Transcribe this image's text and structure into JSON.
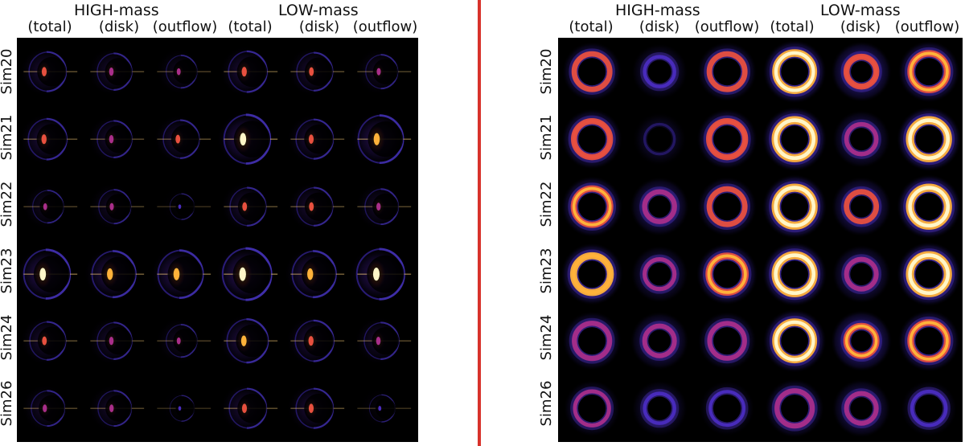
{
  "divider_color": "#d8322b",
  "panels": [
    {
      "view": "edge-on",
      "groups": [
        "HIGH-mass",
        "LOW-mass"
      ],
      "columns": [
        "(total)",
        "(disk)",
        "(outflow)",
        "(total)",
        "(disk)",
        "(outflow)"
      ],
      "rows": [
        "Sim20",
        "Sim21",
        "Sim22",
        "Sim23",
        "Sim24",
        "Sim26"
      ],
      "intensity": [
        [
          0.55,
          0.45,
          0.3,
          0.6,
          0.5,
          0.35
        ],
        [
          0.6,
          0.45,
          0.5,
          0.9,
          0.55,
          0.85
        ],
        [
          0.3,
          0.35,
          0.05,
          0.5,
          0.5,
          0.4
        ],
        [
          0.9,
          0.8,
          0.85,
          1.0,
          0.8,
          0.95
        ],
        [
          0.5,
          0.45,
          0.3,
          0.7,
          0.6,
          0.45
        ],
        [
          0.4,
          0.4,
          0.05,
          0.55,
          0.55,
          0.1
        ]
      ]
    },
    {
      "view": "face-on",
      "groups": [
        "HIGH-mass",
        "LOW-mass"
      ],
      "columns": [
        "(total)",
        "(disk)",
        "(outflow)",
        "(total)",
        "(disk)",
        "(outflow)"
      ],
      "rows": [
        "Sim20",
        "Sim21",
        "Sim22",
        "Sim23",
        "Sim24",
        "Sim26"
      ],
      "intensity": [
        [
          0.55,
          0.25,
          0.55,
          0.9,
          0.65,
          0.75
        ],
        [
          0.65,
          0.1,
          0.65,
          1.0,
          0.4,
          1.0
        ],
        [
          0.7,
          0.5,
          0.55,
          1.0,
          0.55,
          1.0
        ],
        [
          0.8,
          0.35,
          0.75,
          1.0,
          0.45,
          1.0
        ],
        [
          0.5,
          0.45,
          0.45,
          0.9,
          0.7,
          0.75
        ],
        [
          0.3,
          0.25,
          0.2,
          0.5,
          0.45,
          0.25
        ]
      ]
    }
  ]
}
